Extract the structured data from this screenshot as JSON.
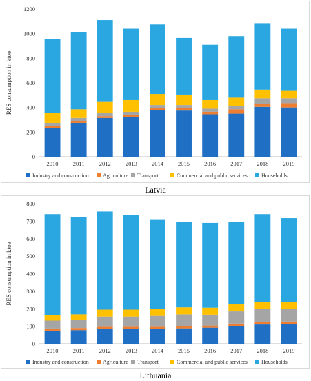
{
  "colors": {
    "industry": "#1f6fc4",
    "agriculture": "#ed7d31",
    "transport": "#a5a5a5",
    "commercial": "#ffc000",
    "households": "#2aa7e0"
  },
  "chart_data": [
    {
      "type": "bar",
      "stacked": true,
      "country": "Latvia",
      "ylabel": "RES consumption in ktoe",
      "ylim": [
        0,
        1200
      ],
      "yticks": [
        0,
        200,
        400,
        600,
        800,
        1000,
        1200
      ],
      "categories": [
        "2010",
        "2011",
        "2012",
        "2013",
        "2014",
        "2015",
        "2016",
        "2017",
        "2018",
        "2019"
      ],
      "legend_position": "bottom",
      "grid": false,
      "series": [
        {
          "name": "Industry and construction",
          "color_key": "industry",
          "values": [
            235,
            275,
            315,
            325,
            380,
            375,
            345,
            350,
            405,
            400
          ]
        },
        {
          "name": "Agriculture",
          "color_key": "agriculture",
          "values": [
            15,
            15,
            15,
            15,
            15,
            20,
            20,
            35,
            25,
            35
          ]
        },
        {
          "name": "Transport",
          "color_key": "transport",
          "values": [
            25,
            25,
            25,
            25,
            25,
            25,
            25,
            25,
            45,
            40
          ]
        },
        {
          "name": "Commercial and public services",
          "color_key": "commercial",
          "values": [
            80,
            70,
            90,
            95,
            90,
            85,
            70,
            70,
            70,
            60
          ]
        },
        {
          "name": "Households",
          "color_key": "households",
          "values": [
            600,
            625,
            665,
            580,
            565,
            460,
            450,
            500,
            535,
            505
          ]
        }
      ]
    },
    {
      "type": "bar",
      "stacked": true,
      "country": "Lithuania",
      "ylabel": "RES consumption in ktoe",
      "ylim": [
        0,
        800
      ],
      "yticks": [
        0,
        100,
        200,
        300,
        400,
        500,
        600,
        700,
        800
      ],
      "categories": [
        "2010",
        "2011",
        "2012",
        "2013",
        "2014",
        "2015",
        "2016",
        "2017",
        "2018",
        "2019"
      ],
      "legend_position": "bottom",
      "grid": false,
      "series": [
        {
          "name": "Industry and construction",
          "color_key": "industry",
          "values": [
            75,
            78,
            85,
            85,
            85,
            88,
            92,
            100,
            110,
            112
          ]
        },
        {
          "name": "Agriculture",
          "color_key": "agriculture",
          "values": [
            12,
            12,
            12,
            12,
            12,
            12,
            12,
            15,
            15,
            15
          ]
        },
        {
          "name": "Transport",
          "color_key": "transport",
          "values": [
            45,
            45,
            58,
            58,
            62,
            68,
            62,
            70,
            75,
            72
          ]
        },
        {
          "name": "Commercial and public services",
          "color_key": "commercial",
          "values": [
            33,
            33,
            40,
            40,
            40,
            40,
            40,
            40,
            40,
            40
          ]
        },
        {
          "name": "Households",
          "color_key": "households",
          "values": [
            575,
            557,
            560,
            540,
            508,
            489,
            484,
            470,
            500,
            478
          ]
        }
      ]
    }
  ]
}
